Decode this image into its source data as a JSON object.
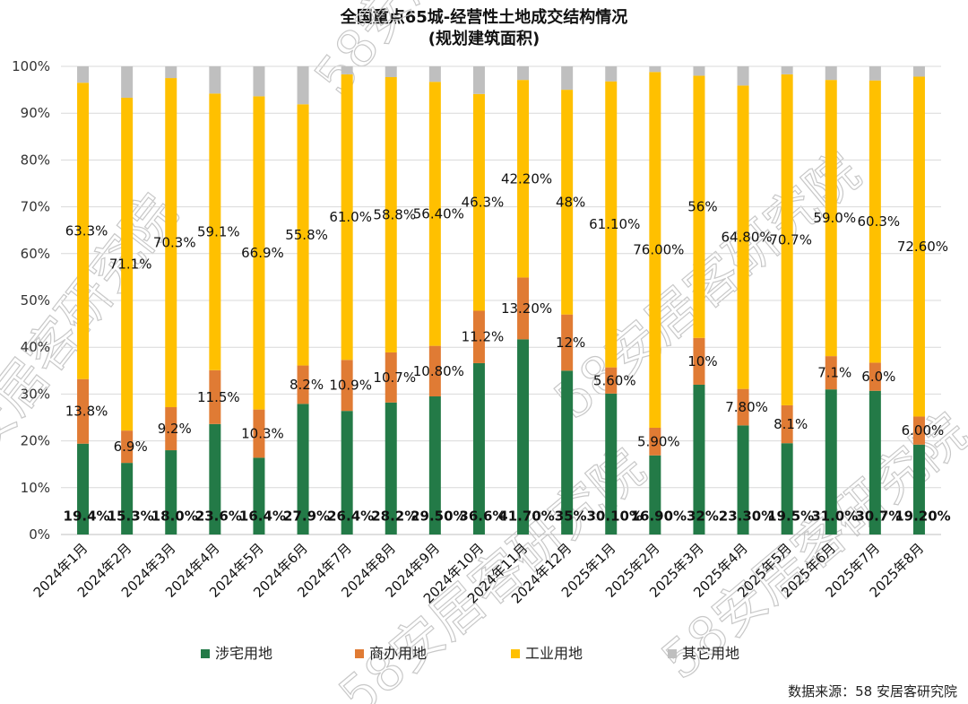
{
  "title_line1": "全国重点65城-经营性土地成交结构情况",
  "title_line2": "(规划建筑面积)",
  "source": "数据来源：58 安居客研究院",
  "watermark": "58安居客研究院",
  "colors": {
    "residential": "#237a47",
    "commercial": "#e07b34",
    "industrial": "#ffc000",
    "other": "#bfbfbf"
  },
  "chart_data": {
    "type": "bar",
    "stacked": true,
    "ylim": [
      0,
      100
    ],
    "ytick_labels": [
      "0%",
      "10%",
      "20%",
      "30%",
      "40%",
      "50%",
      "60%",
      "70%",
      "80%",
      "90%",
      "100%"
    ],
    "categories": [
      "2024年1月",
      "2024年2月",
      "2024年3月",
      "2024年4月",
      "2024年5月",
      "2024年6月",
      "2024年7月",
      "2024年8月",
      "2024年9月",
      "2024年10月",
      "2024年11月",
      "2024年12月",
      "2025年1月",
      "2025年2月",
      "2025年3月",
      "2025年4月",
      "2025年5月",
      "2025年6月",
      "2025年7月",
      "2025年8月"
    ],
    "series": [
      {
        "name": "涉宅用地",
        "key": "residential",
        "values": [
          19.4,
          15.3,
          18.0,
          23.6,
          16.4,
          27.9,
          26.4,
          28.2,
          29.5,
          36.6,
          41.7,
          35,
          30.1,
          16.9,
          32,
          23.3,
          19.5,
          31.0,
          30.7,
          19.2
        ],
        "labels": [
          "19.4%",
          "15.3%",
          "18.0%",
          "23.6%",
          "16.4%",
          "27.9%",
          "26.4%",
          "28.2%",
          "29.50%",
          "36.6%",
          "41.70%",
          "35%",
          "30.10%",
          "16.90%",
          "32%",
          "23.30%",
          "19.5%",
          "31.0%",
          "30.7%",
          "19.20%"
        ]
      },
      {
        "name": "商办用地",
        "key": "commercial",
        "values": [
          13.8,
          6.9,
          9.2,
          11.5,
          10.3,
          8.2,
          10.9,
          10.7,
          10.8,
          11.2,
          13.2,
          12,
          5.6,
          5.9,
          10,
          7.8,
          8.1,
          7.1,
          6.0,
          6.0
        ],
        "labels": [
          "13.8%",
          "6.9%",
          "9.2%",
          "11.5%",
          "10.3%",
          "8.2%",
          "10.9%",
          "10.7%",
          "10.80%",
          "11.2%",
          "13.20%",
          "12%",
          "5.60%",
          "5.90%",
          "10%",
          "7.80%",
          "8.1%",
          "7.1%",
          "6.0%",
          "6.00%"
        ]
      },
      {
        "name": "工业用地",
        "key": "industrial",
        "values": [
          63.3,
          71.1,
          70.3,
          59.1,
          66.9,
          55.8,
          61.0,
          58.8,
          56.4,
          46.3,
          42.2,
          48,
          61.1,
          76.0,
          56,
          64.8,
          70.7,
          59.0,
          60.3,
          72.6
        ],
        "labels": [
          "63.3%",
          "71.1%",
          "70.3%",
          "59.1%",
          "66.9%",
          "55.8%",
          "61.0%",
          "58.8%",
          "56.40%",
          "46.3%",
          "42.20%",
          "48%",
          "61.10%",
          "76.00%",
          "56%",
          "64.80%",
          "70.7%",
          "59.0%",
          "60.3%",
          "72.60%"
        ]
      },
      {
        "name": "其它用地",
        "key": "other",
        "values": [
          3.5,
          6.7,
          2.5,
          5.8,
          6.4,
          8.1,
          1.7,
          2.3,
          3.3,
          5.9,
          2.9,
          5,
          3.2,
          1.2,
          2,
          4.1,
          1.7,
          2.9,
          3.0,
          2.2
        ],
        "labels": []
      }
    ],
    "legend_position": "bottom",
    "grid": true
  }
}
